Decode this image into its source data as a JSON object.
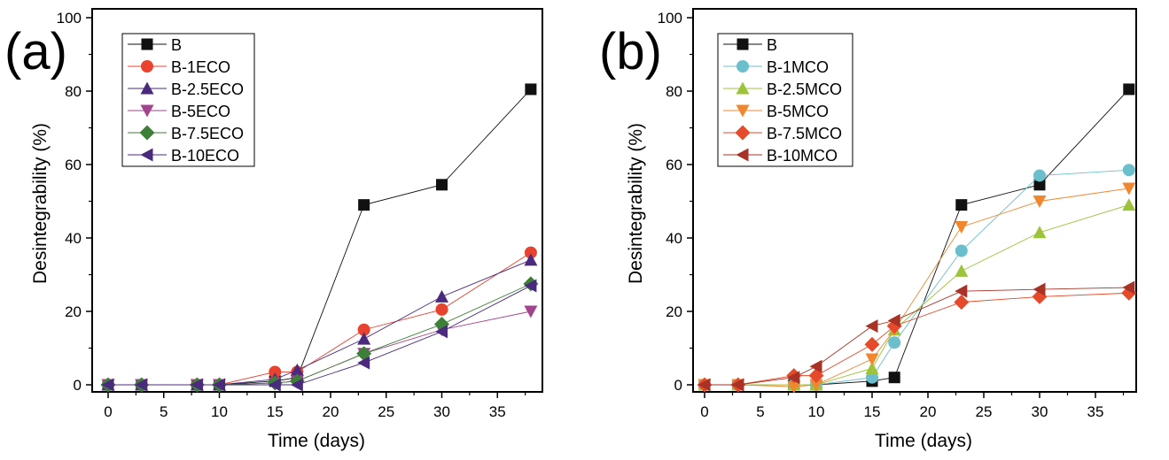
{
  "chart_data": [
    {
      "type": "line",
      "panel_label": "(a)",
      "xlabel": "Time (days)",
      "ylabel": "Desintegrability (%)",
      "xlim": [
        -1,
        39.5
      ],
      "ylim": [
        -3,
        100
      ],
      "xticks": [
        0,
        5,
        10,
        15,
        20,
        25,
        30,
        35
      ],
      "yticks": [
        0,
        20,
        40,
        60,
        80,
        100
      ],
      "x": [
        0,
        3,
        8,
        10,
        15,
        17,
        23,
        30,
        38
      ],
      "legend_position": "top-left",
      "series": [
        {
          "name": "B",
          "marker": "square",
          "color": "#111111",
          "values": [
            0,
            0,
            0,
            0,
            1,
            2,
            49,
            54.5,
            80.5
          ]
        },
        {
          "name": "B-1ECO",
          "marker": "circle",
          "color": "#e8432e",
          "values": [
            0,
            0,
            0,
            0,
            3.5,
            3.5,
            15,
            20.5,
            36
          ]
        },
        {
          "name": "B-2.5ECO",
          "marker": "triangle-up",
          "color": "#4a2a7c",
          "values": [
            0,
            0,
            0,
            0,
            1.5,
            4,
            12.5,
            24,
            34
          ]
        },
        {
          "name": "B-5ECO",
          "marker": "triangle-down",
          "color": "#a3448f",
          "values": [
            0,
            0,
            0,
            0,
            0.5,
            1,
            8.5,
            15,
            20
          ]
        },
        {
          "name": "B-7.5ECO",
          "marker": "diamond",
          "color": "#3d7f36",
          "values": [
            0,
            0,
            0,
            0,
            0.5,
            1,
            8.5,
            16.5,
            27.5
          ]
        },
        {
          "name": "B-10ECO",
          "marker": "triangle-left",
          "color": "#4a2a7c",
          "values": [
            0,
            0,
            0,
            0,
            0,
            0,
            6,
            14.5,
            27
          ]
        }
      ]
    },
    {
      "type": "line",
      "panel_label": "(b)",
      "xlabel": "Time (days)",
      "ylabel": "Desintegrability (%)",
      "xlim": [
        -1,
        39.5
      ],
      "ylim": [
        -3,
        100
      ],
      "xticks": [
        0,
        5,
        10,
        15,
        20,
        25,
        30,
        35
      ],
      "yticks": [
        0,
        20,
        40,
        60,
        80,
        100
      ],
      "x": [
        0,
        3,
        8,
        10,
        15,
        17,
        23,
        30,
        38
      ],
      "legend_position": "top-left",
      "series": [
        {
          "name": "B",
          "marker": "square",
          "color": "#111111",
          "values": [
            0,
            0,
            0,
            0,
            1,
            2,
            49,
            54.5,
            80.5
          ]
        },
        {
          "name": "B-1MCO",
          "marker": "circle",
          "color": "#6bbfcc",
          "values": [
            0,
            0,
            0,
            0,
            2,
            11.5,
            36.5,
            57,
            58.5
          ]
        },
        {
          "name": "B-2.5MCO",
          "marker": "triangle-up",
          "color": "#9dc33b",
          "values": [
            0,
            0,
            0,
            0,
            4.5,
            15,
            31,
            41.5,
            49
          ]
        },
        {
          "name": "B-5MCO",
          "marker": "triangle-down",
          "color": "#f0872f",
          "values": [
            0,
            0,
            -0.5,
            0,
            7,
            15,
            43,
            50,
            53.5
          ]
        },
        {
          "name": "B-7.5MCO",
          "marker": "diamond",
          "color": "#e54a2a",
          "values": [
            0,
            0,
            2.5,
            2.5,
            11,
            16,
            22.5,
            24,
            25
          ]
        },
        {
          "name": "B-10MCO",
          "marker": "triangle-left",
          "color": "#a93226",
          "values": [
            0,
            0,
            2,
            5,
            16,
            17.5,
            25.5,
            26,
            26.5
          ]
        }
      ]
    }
  ]
}
